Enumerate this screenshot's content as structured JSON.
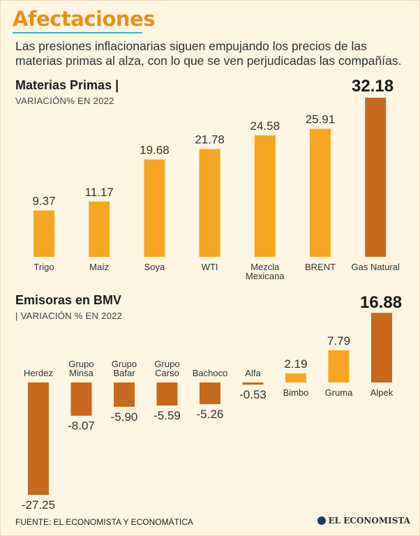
{
  "header": {
    "title": "Afectaciones",
    "subtitle": "Las presiones inflacionarias siguen empujando los precios de las materias primas al alza, con lo que se ven perjudicadas las compañías."
  },
  "footer": {
    "source": "FUENTE: EL ECONOMISTA Y ECONOMÁTICA",
    "brand": "EL ECONOMISTA",
    "brand_icon": "el-economista-logo-icon"
  },
  "colors": {
    "bar": "#f6a623",
    "highlight": "#c8691b",
    "title": "#e8901d",
    "rule": "#2bb7c9"
  },
  "chart_data": [
    {
      "type": "bar",
      "title": "Materias Primas |",
      "subtitle": "VARIACIÓN% EN 2022",
      "highlight_value": "32.18",
      "categories": [
        "Trigo",
        "Maíz",
        "Soya",
        "WTI",
        "Mezcla Mexicana",
        "BRENT",
        "Gas Natural"
      ],
      "values": [
        9.37,
        11.17,
        19.68,
        21.78,
        24.58,
        25.91,
        32.18
      ],
      "value_labels": [
        "9.37",
        "11.17",
        "19.68",
        "21.78",
        "24.58",
        "25.91",
        ""
      ],
      "highlight_index": 6,
      "ylim": [
        0,
        32.18
      ]
    },
    {
      "type": "bar",
      "title": "Emisoras en BMV",
      "subtitle": "| VARIACIÓN % EN 2022",
      "highlight_value": "16.88",
      "categories": [
        "Herdez",
        "Grupo Minsa",
        "Grupo Bafar",
        "Grupo Carso",
        "Bachoco",
        "Alfa",
        "Bimbo",
        "Gruma",
        "Alpek"
      ],
      "values": [
        -27.25,
        -8.07,
        -5.9,
        -5.59,
        -5.26,
        -0.53,
        2.19,
        7.79,
        16.88
      ],
      "value_labels": [
        "-27.25",
        "-8.07",
        "-5.90",
        "-5.59",
        "-5.26",
        "-0.53",
        "2.19",
        "7.79",
        ""
      ],
      "highlight_index": 8,
      "ylim": [
        -27.25,
        16.88
      ]
    }
  ]
}
